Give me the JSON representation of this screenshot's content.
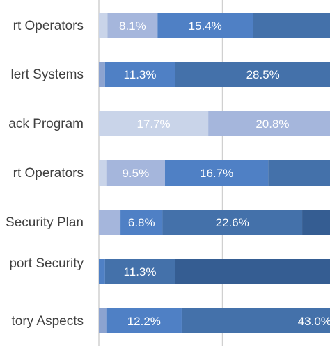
{
  "chart_data": {
    "type": "bar",
    "orientation": "horizontal",
    "stacked": true,
    "visible_scale_max": 37.4,
    "gridlines": [
      0,
      20
    ],
    "grid": true,
    "categories": [
      "rt Operators",
      "lert Systems",
      "ack Program",
      "rt Operators",
      "Security Plan",
      "port Security",
      "tory Aspects"
    ],
    "rows": [
      {
        "segments": [
          {
            "value": 1.4,
            "label": "",
            "color": "#c9d4e9"
          },
          {
            "value": 8.1,
            "label": "8.1%",
            "color": "#a5b6dc"
          },
          {
            "value": 15.4,
            "label": "15.4%",
            "color": "#4f80c5"
          },
          {
            "value": 20.0,
            "label": "",
            "color": "#4471aa"
          }
        ]
      },
      {
        "segments": [
          {
            "value": 1.0,
            "label": "",
            "color": "#8ca3d0"
          },
          {
            "value": 11.3,
            "label": "11.3%",
            "color": "#4f80c5"
          },
          {
            "value": 28.5,
            "label": "28.5%",
            "color": "#4471aa"
          }
        ]
      },
      {
        "segments": [
          {
            "value": 17.7,
            "label": "17.7%",
            "color": "#c9d4e9"
          },
          {
            "value": 20.8,
            "label": "20.8%",
            "color": "#a5b6dc"
          }
        ]
      },
      {
        "segments": [
          {
            "value": 1.2,
            "label": "",
            "color": "#c9d4e9"
          },
          {
            "value": 9.5,
            "label": "9.5%",
            "color": "#a5b6dc"
          },
          {
            "value": 16.7,
            "label": "16.7%",
            "color": "#4f80c5"
          },
          {
            "value": 20.0,
            "label": "",
            "color": "#4471aa"
          }
        ]
      },
      {
        "segments": [
          {
            "value": 3.5,
            "label": "",
            "color": "#a5b6dc"
          },
          {
            "value": 6.8,
            "label": "6.8%",
            "color": "#4f80c5"
          },
          {
            "value": 22.6,
            "label": "22.6%",
            "color": "#4471aa"
          },
          {
            "value": 10.0,
            "label": "",
            "color": "#355d92"
          }
        ]
      },
      {
        "segments": [
          {
            "value": 1.0,
            "label": "",
            "color": "#4f80c5"
          },
          {
            "value": 11.3,
            "label": "11.3%",
            "color": "#4471aa"
          },
          {
            "value": 30.0,
            "label": "",
            "color": "#355d92"
          }
        ]
      },
      {
        "segments": [
          {
            "value": 1.2,
            "label": "",
            "color": "#8ca3d0"
          },
          {
            "value": 12.2,
            "label": "12.2%",
            "color": "#4f80c5"
          },
          {
            "value": 43.0,
            "label": "43.0%",
            "color": "#4471aa"
          }
        ]
      }
    ]
  }
}
